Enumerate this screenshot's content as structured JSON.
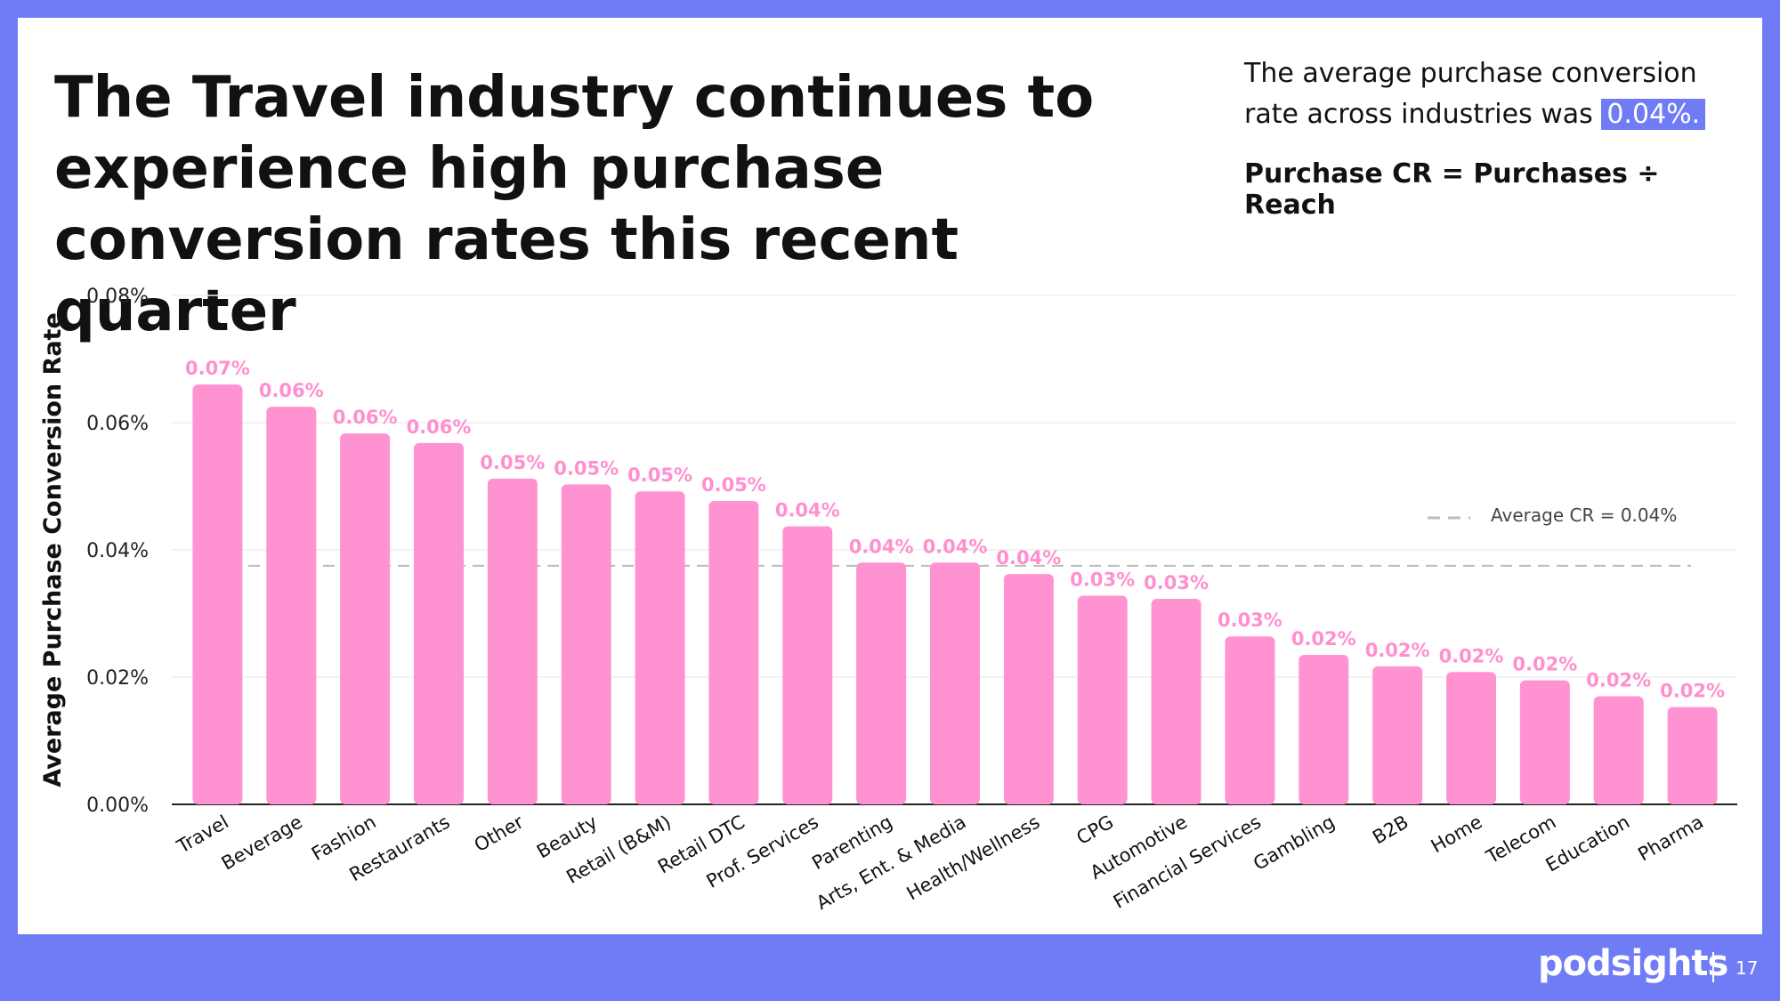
{
  "slide": {
    "title": "The Travel industry continues to experience high purchase conversion rates this recent quarter",
    "summary_text": "The average purchase conversion rate across industries was",
    "summary_value": "0.04%.",
    "formula": "Purchase CR = Purchases ÷ Reach"
  },
  "footer": {
    "brand": "podsights",
    "page_number": "17"
  },
  "colors": {
    "bar": "#ff93d1",
    "label": "#ff8fcf",
    "average_line": "#bcbcbc",
    "accent": "#6f7cf6"
  },
  "chart_data": {
    "type": "bar",
    "ylabel": "Average Purchase Conversion Rate",
    "xlabel": "",
    "ylim": [
      0,
      0.08
    ],
    "yticks": [
      0,
      0.02,
      0.04,
      0.06,
      0.08
    ],
    "ytick_labels": [
      "0.00%",
      "0.02%",
      "0.04%",
      "0.06%",
      "0.08%"
    ],
    "categories": [
      "Travel",
      "Beverage",
      "Fashion",
      "Restaurants",
      "Other",
      "Beauty",
      "Retail (B&M)",
      "Retail DTC",
      "Prof. Services",
      "Parenting",
      "Arts, Ent. & Media",
      "Health/Wellness",
      "CPG",
      "Automotive",
      "Financial Services",
      "Gambling",
      "B2B",
      "Home",
      "Telecom",
      "Education",
      "Pharma"
    ],
    "values": [
      0.066,
      0.0625,
      0.0583,
      0.0568,
      0.0512,
      0.0503,
      0.0492,
      0.0477,
      0.0437,
      0.038,
      0.038,
      0.0362,
      0.0328,
      0.0323,
      0.0264,
      0.0235,
      0.0217,
      0.0208,
      0.0195,
      0.017,
      0.0153
    ],
    "data_labels": [
      "0.07%",
      "0.06%",
      "0.06%",
      "0.06%",
      "0.05%",
      "0.05%",
      "0.05%",
      "0.05%",
      "0.04%",
      "0.04%",
      "0.04%",
      "0.04%",
      "0.03%",
      "0.03%",
      "0.03%",
      "0.02%",
      "0.02%",
      "0.02%",
      "0.02%",
      "0.02%",
      "0.02%"
    ],
    "average": 0.0375,
    "average_label": "Average CR = 0.04%",
    "grid": true
  }
}
